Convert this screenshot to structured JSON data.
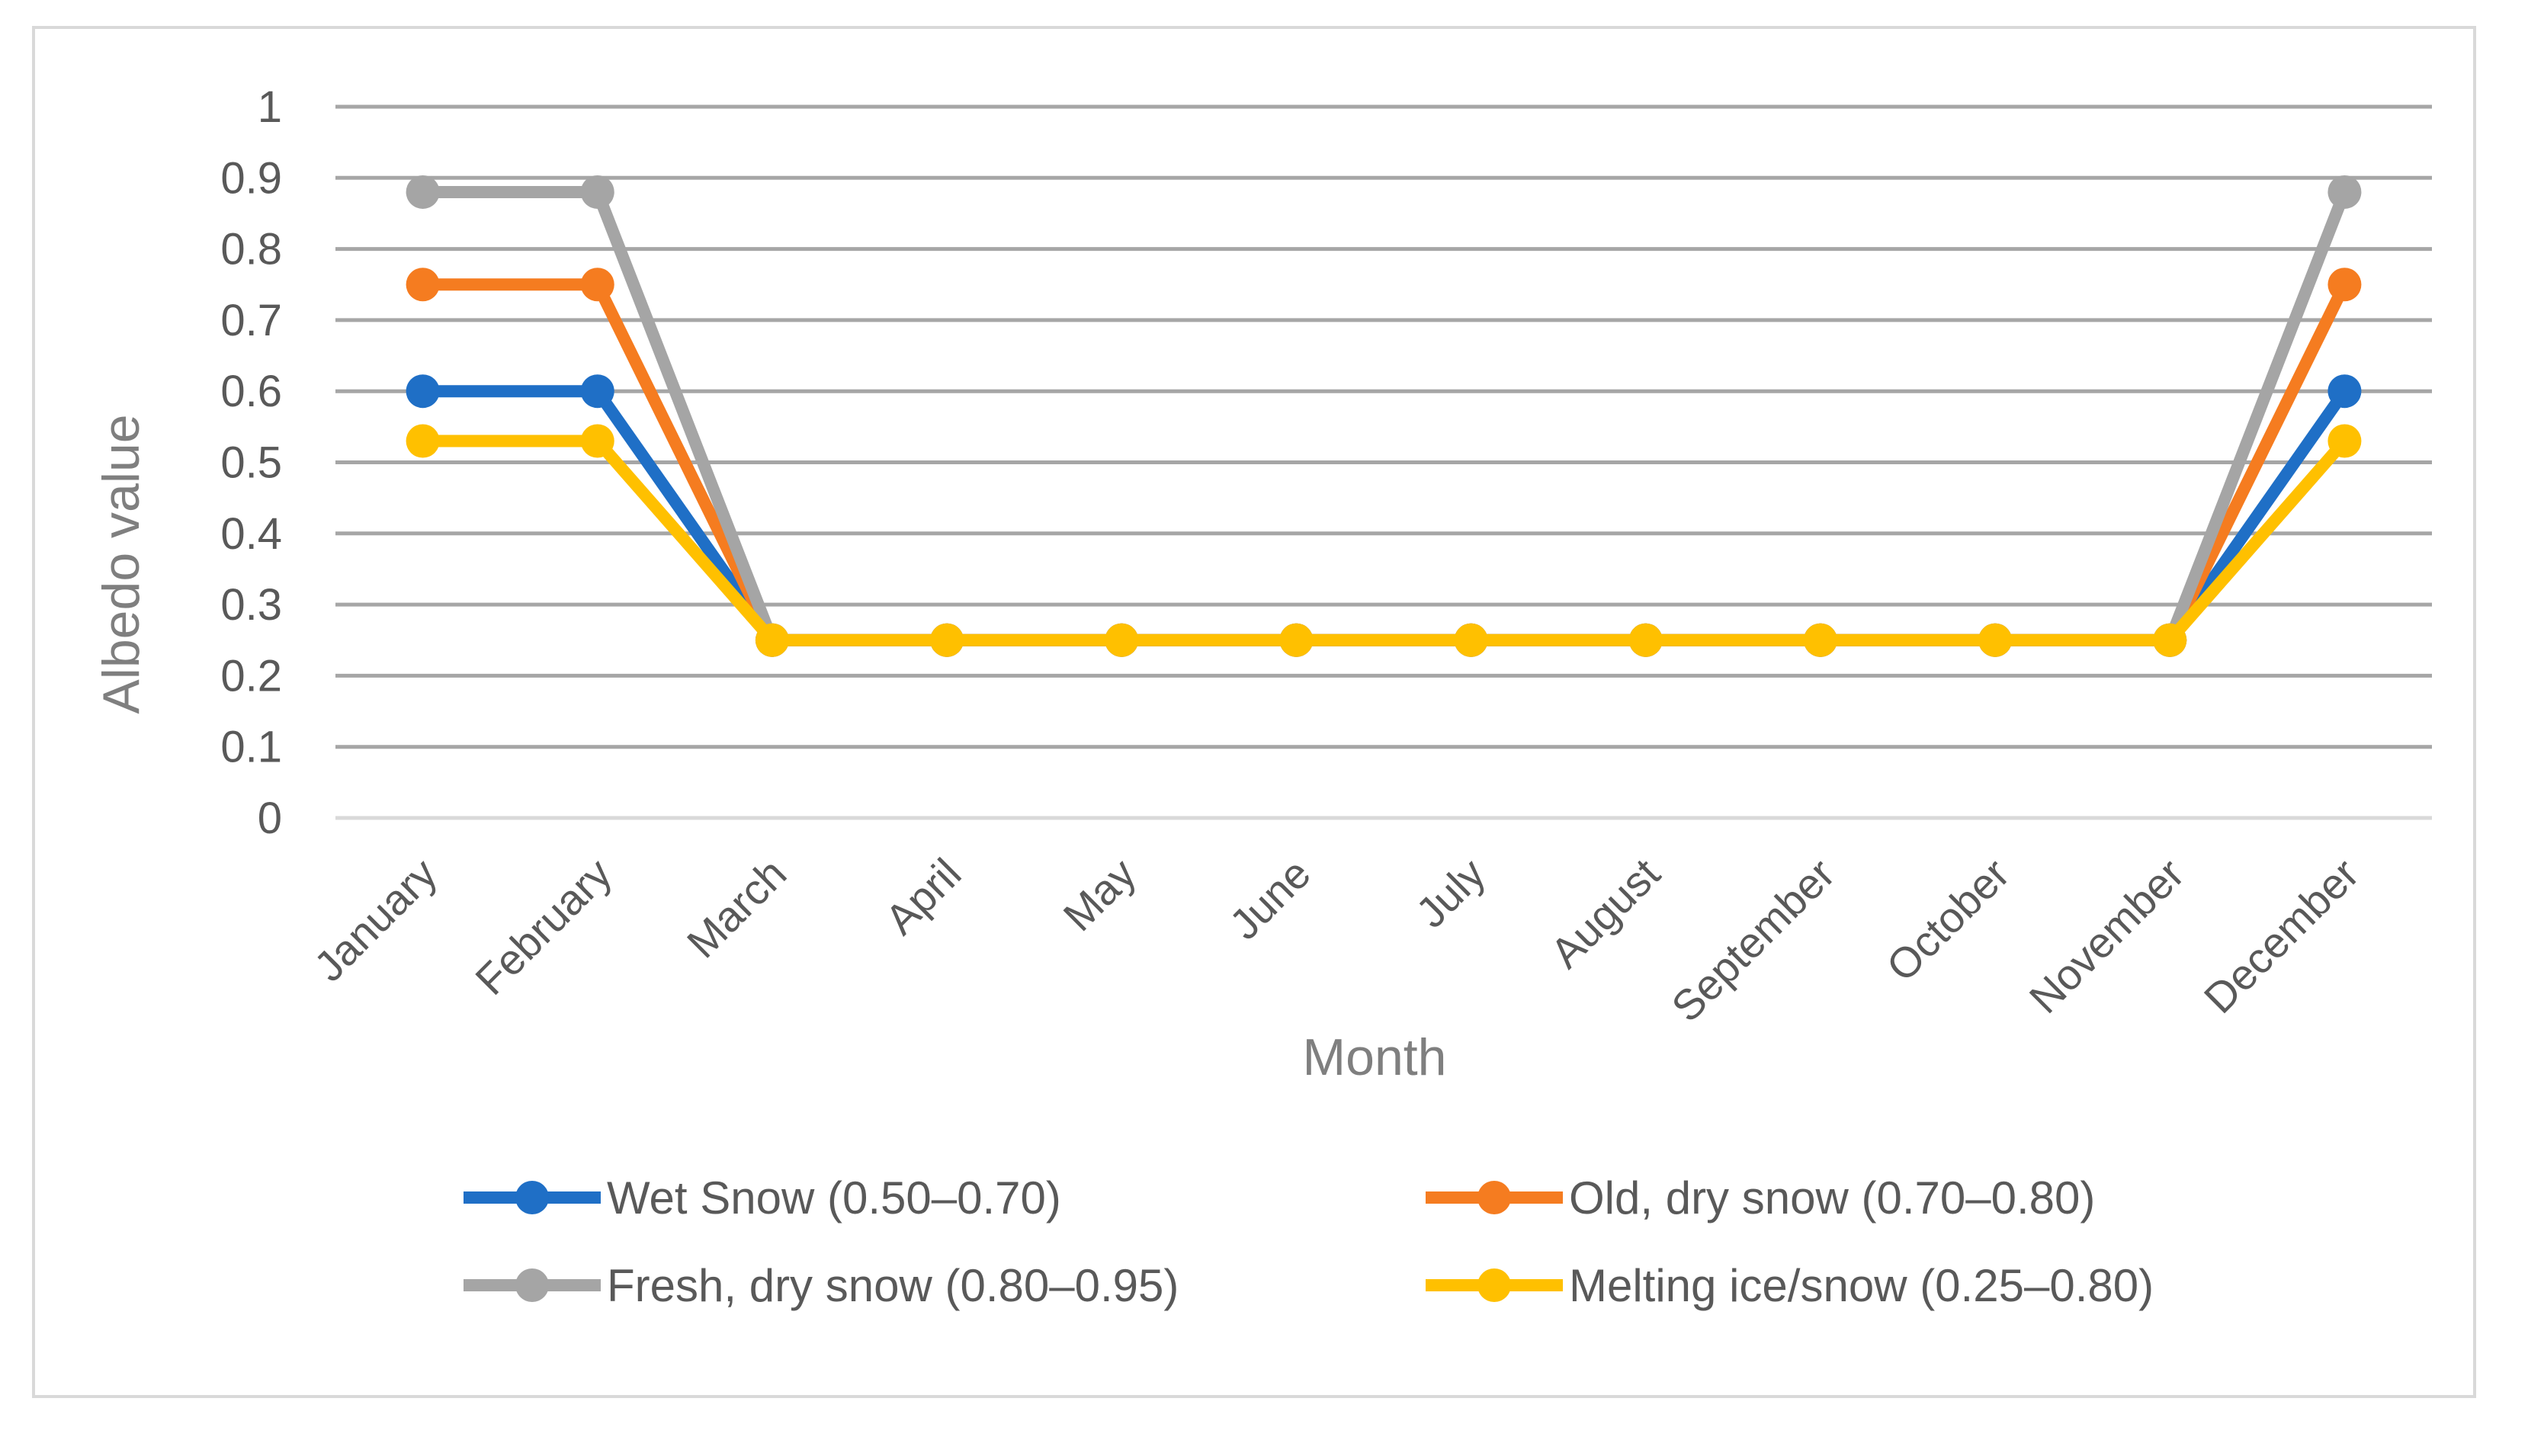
{
  "chart_data": {
    "type": "line",
    "title": "",
    "xlabel": "Month",
    "ylabel": "Albedo value",
    "ylim": [
      0,
      1
    ],
    "ytick_step": 0.1,
    "yticks": [
      "0",
      "0.1",
      "0.2",
      "0.3",
      "0.4",
      "0.5",
      "0.6",
      "0.7",
      "0.8",
      "0.9",
      "1"
    ],
    "grid": true,
    "legend_position": "bottom",
    "categories": [
      "January",
      "February",
      "March",
      "April",
      "May",
      "June",
      "July",
      "August",
      "September",
      "October",
      "November",
      "December"
    ],
    "series": [
      {
        "name": "Wet Snow (0.50–0.70)",
        "color": "#1f6fc6",
        "values": [
          0.6,
          0.6,
          0.25,
          0.25,
          0.25,
          0.25,
          0.25,
          0.25,
          0.25,
          0.25,
          0.25,
          0.6
        ]
      },
      {
        "name": "Old, dry snow (0.70–0.80)",
        "color": "#f57c20",
        "values": [
          0.75,
          0.75,
          0.25,
          0.25,
          0.25,
          0.25,
          0.25,
          0.25,
          0.25,
          0.25,
          0.25,
          0.75
        ]
      },
      {
        "name": "Fresh, dry snow (0.80–0.95)",
        "color": "#a5a5a5",
        "values": [
          0.88,
          0.88,
          0.25,
          0.25,
          0.25,
          0.25,
          0.25,
          0.25,
          0.25,
          0.25,
          0.25,
          0.88
        ]
      },
      {
        "name": "Melting ice/snow (0.25–0.80)",
        "color": "#ffc000",
        "values": [
          0.53,
          0.53,
          0.25,
          0.25,
          0.25,
          0.25,
          0.25,
          0.25,
          0.25,
          0.25,
          0.25,
          0.53
        ]
      }
    ],
    "draw_order": [
      0,
      1,
      2,
      3
    ]
  }
}
